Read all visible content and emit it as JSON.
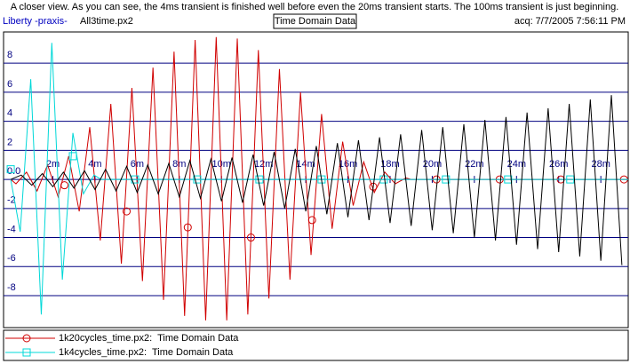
{
  "chart_data": {
    "type": "line",
    "title": "A closer view. As you can see, the 4ms transient is finished well before even the 20ms transient starts. The 100ms transient is just beginning.",
    "header": {
      "app": "Liberty -praxis-",
      "file": "All3time.px2",
      "center": "Time Domain Data",
      "acq": "acq: 7/7/2005 7:56:11 PM"
    },
    "xlim": [
      -0.34,
      29.3
    ],
    "ylim": [
      -10.2,
      10.15
    ],
    "xticks": [
      {
        "value": 2,
        "label": "2m"
      },
      {
        "value": 4,
        "label": "4m"
      },
      {
        "value": 6,
        "label": "6m"
      },
      {
        "value": 8,
        "label": "8m"
      },
      {
        "value": 10,
        "label": "10m"
      },
      {
        "value": 12,
        "label": "12m"
      },
      {
        "value": 14,
        "label": "14m"
      },
      {
        "value": 16,
        "label": "16m"
      },
      {
        "value": 18,
        "label": "18m"
      },
      {
        "value": 20,
        "label": "20m"
      },
      {
        "value": 22,
        "label": "22m"
      },
      {
        "value": 24,
        "label": "24m"
      },
      {
        "value": 26,
        "label": "26m"
      },
      {
        "value": 28,
        "label": "28m"
      }
    ],
    "yticks": [
      8,
      6,
      4,
      2,
      {
        "value": 0,
        "label": "0.0"
      },
      -2,
      -4,
      -6,
      -8
    ],
    "grid": true,
    "series": [
      {
        "name": "1k20cycles_time.px2:  Time Domain Data",
        "color": "#d00000",
        "marker": "circle",
        "x": [
          0,
          0.25,
          0.75,
          1.25,
          1.75,
          2.25,
          2.75,
          3.25,
          3.75,
          4.25,
          4.75,
          5.25,
          5.75,
          6.25,
          6.75,
          7.25,
          7.75,
          8.25,
          8.75,
          9.25,
          9.75,
          10.25,
          10.75,
          11.25,
          11.75,
          12.25,
          12.75,
          13.25,
          13.75,
          14.25,
          14.75,
          15.25,
          15.75,
          16.25,
          16.75,
          17.25,
          17.75,
          18.25,
          18.75,
          19,
          29.3
        ],
        "values": [
          0,
          -0.3,
          0.5,
          -0.8,
          1.0,
          -1.2,
          1.6,
          -2.2,
          3.6,
          -4.2,
          5.2,
          -5.8,
          6.3,
          -7.0,
          7.7,
          -8.3,
          8.8,
          -9.4,
          9.6,
          -9.7,
          9.8,
          -9.7,
          9.7,
          -9.3,
          8.9,
          -8.2,
          7.6,
          -6.9,
          6.0,
          -5.2,
          4.5,
          -3.4,
          2.6,
          -1.8,
          1.2,
          -0.9,
          0.5,
          -0.3,
          0.1,
          0,
          0
        ],
        "markers": {
          "x": [
            2.55,
            5.5,
            8.4,
            11.4,
            14.3,
            17.2,
            20.2,
            23.2,
            26.1,
            29.1
          ],
          "values": [
            -0.4,
            -2.2,
            -3.3,
            -4.0,
            -2.8,
            -0.5,
            0,
            0,
            0,
            0
          ]
        }
      },
      {
        "name": "1k4cycles_time.px2:  Time Domain Data",
        "color": "#00d8d8",
        "marker": "square",
        "x": [
          0,
          0.45,
          0.95,
          1.45,
          1.95,
          2.45,
          2.95,
          3.45,
          3.95,
          4.3,
          29.3
        ],
        "values": [
          0,
          -3.6,
          6.9,
          -9.3,
          9.4,
          -6.9,
          3.2,
          -1.0,
          0.3,
          0,
          0
        ],
        "markers": {
          "x": [
            0,
            2.95,
            5.9,
            8.85,
            11.8,
            14.75,
            17.7,
            20.65,
            23.6,
            26.55
          ],
          "values": [
            0.7,
            1.6,
            0,
            0,
            0,
            0,
            0,
            0,
            0,
            0
          ]
        }
      },
      {
        "color": "#000000",
        "x": [
          0,
          0.5,
          1,
          1.5,
          2,
          2.5,
          3,
          3.5,
          4,
          4.5,
          5,
          5.5,
          6,
          6.5,
          7,
          7.5,
          8,
          8.5,
          9,
          9.5,
          10,
          10.5,
          11,
          11.5,
          12,
          12.5,
          13,
          13.5,
          14,
          14.5,
          15,
          15.5,
          16,
          16.5,
          17,
          17.5,
          18,
          18.5,
          19,
          19.5,
          20,
          20.5,
          21,
          21.5,
          22,
          22.5,
          23,
          23.5,
          24,
          24.5,
          25,
          25.5,
          26,
          26.5,
          27,
          27.5,
          28,
          28.5,
          29
        ],
        "values": [
          0,
          0.3,
          -0.4,
          0.4,
          -0.5,
          0.5,
          -0.6,
          0.6,
          -0.7,
          0.7,
          -0.8,
          0.9,
          -0.9,
          1.0,
          -1.0,
          1.1,
          -1.2,
          1.3,
          -1.3,
          1.4,
          -1.5,
          1.5,
          -1.6,
          1.7,
          -1.8,
          1.9,
          -2.0,
          2.1,
          -2.2,
          2.3,
          -2.4,
          2.5,
          -2.6,
          2.7,
          -2.8,
          2.9,
          -3.0,
          3.1,
          -3.2,
          3.4,
          -3.5,
          3.6,
          -3.7,
          3.8,
          -4.0,
          4.1,
          -4.2,
          4.3,
          -4.5,
          4.6,
          -4.8,
          4.9,
          -5.0,
          5.2,
          -5.3,
          5.5,
          -5.6,
          5.8,
          -5.9
        ]
      }
    ]
  }
}
